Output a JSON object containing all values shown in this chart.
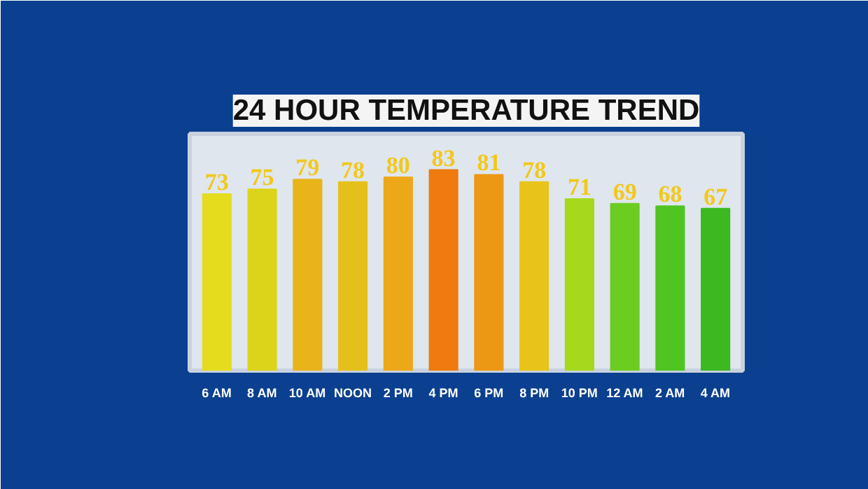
{
  "chart_data": {
    "type": "bar",
    "title": "24 HOUR TEMPERATURE TREND",
    "categories": [
      "6 AM",
      "8 AM",
      "10 AM",
      "NOON",
      "2 PM",
      "4 PM",
      "6 PM",
      "8 PM",
      "10 PM",
      "12 AM",
      "2 AM",
      "4 AM"
    ],
    "values": [
      73,
      75,
      79,
      78,
      80,
      83,
      81,
      78,
      71,
      69,
      68,
      67
    ],
    "colors": [
      "#e4dc1c",
      "#dcd41a",
      "#e8b41a",
      "#e6c01a",
      "#eca818",
      "#ee7a10",
      "#ec9814",
      "#e8c41a",
      "#a6d81c",
      "#6ccc20",
      "#50c420",
      "#3cb820"
    ],
    "data_labels": true
  }
}
